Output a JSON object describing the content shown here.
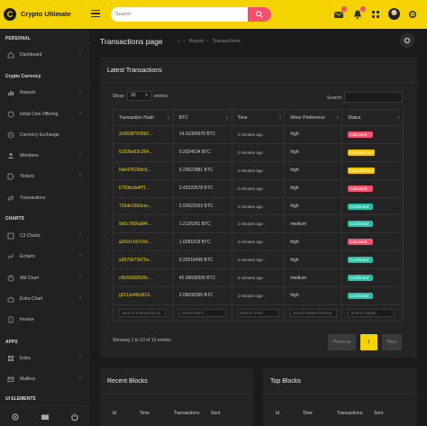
{
  "header": {
    "logo_letter": "C",
    "brand": "Crypto Ultimate",
    "search_placeholder": "Search",
    "notification_count": "",
    "accent": "#f5d300"
  },
  "sidebar": {
    "sections": {
      "personal": "PERSONAL",
      "crypto": "Crypto Currency",
      "charts": "CHARTS",
      "apps": "APPS",
      "ui": "UI ELEMENTS"
    },
    "items": [
      {
        "label": "Dashboard",
        "icon": "home-icon"
      },
      {
        "label": "Reports",
        "icon": "chart-icon"
      },
      {
        "label": "Initial Coin Offering",
        "icon": "coin-icon"
      },
      {
        "label": "Currency Exchange",
        "icon": "exchange-icon"
      },
      {
        "label": "Members",
        "icon": "users-icon"
      },
      {
        "label": "Tickers",
        "icon": "tag-icon"
      },
      {
        "label": "Transactions",
        "icon": "swap-icon"
      },
      {
        "label": "C3 Charts",
        "icon": "bar-chart-icon"
      },
      {
        "label": "Echarts",
        "icon": "line-chart-icon"
      },
      {
        "label": "AM Chart",
        "icon": "pie-chart-icon"
      },
      {
        "label": "Extra Chart",
        "icon": "area-chart-icon"
      },
      {
        "label": "Invoice",
        "icon": "invoice-icon"
      },
      {
        "label": "Extra",
        "icon": "grid-icon"
      },
      {
        "label": "Mailbox",
        "icon": "mail-icon"
      }
    ]
  },
  "page": {
    "title": "Transactions page",
    "breadcrumb": [
      "Report",
      "Transactions"
    ]
  },
  "latest": {
    "title": "Latest Transactions",
    "show_label": "Show",
    "entries_value": "10",
    "entries_label": "entries",
    "search_label": "Search:",
    "columns": [
      "Transaction Hash",
      "BTC",
      "Time",
      "Miner Preference",
      "Status"
    ],
    "rows": [
      {
        "hash": "2c66087936b5...",
        "btc": "14.01099978 BTC",
        "time": "2 minutes ago",
        "pref": "high",
        "status": "Canceled"
      },
      {
        "hash": "51935e53c294...",
        "btc": "0.3024534 BTC",
        "time": "2 minutes ago",
        "pref": "high",
        "status": "Unconfirmed"
      },
      {
        "hash": "5de47415bfc6...",
        "btc": "0.20522881 BTC",
        "time": "2 minutes ago",
        "pref": "high",
        "status": "Unconfirmed"
      },
      {
        "hash": "6793bcfa4f7f...",
        "btc": "2.43220578 BTC",
        "time": "2 minutes ago",
        "pref": "high",
        "status": "Canceled"
      },
      {
        "hash": "733de15b3cec...",
        "btc": "2.02622033 BTC",
        "time": "2 minutes ago",
        "pref": "high",
        "status": "Confirmed"
      },
      {
        "hash": "9d2c7b06a84f...",
        "btc": "1.2126281 BTC",
        "time": "2 minutes ago",
        "pref": "medium",
        "status": "Confirmed"
      },
      {
        "hash": "a261fc1d714d...",
        "btc": "1.0281818 BTC",
        "time": "2 minutes ago",
        "pref": "high",
        "status": "Canceled"
      },
      {
        "hash": "a3976b73d75e...",
        "btc": "0.20518496 BTC",
        "time": "2 minutes ago",
        "pref": "high",
        "status": "Confirmed"
      },
      {
        "hash": "c6b59368635c...",
        "btc": "42.99698306 BTC",
        "time": "2 minutes ago",
        "pref": "medium",
        "status": "Confirmed"
      },
      {
        "hash": "g011cb48c6f19...",
        "btc": "2.08039395 BTC",
        "time": "2 minutes ago",
        "pref": "high",
        "status": "Confirmed"
      }
    ],
    "footer_placeholders": [
      "Search Transaction H",
      "Search BTC",
      "Search Time",
      "Search Miner Prefere",
      "Search Status"
    ],
    "showing": "Showing 1 to 10 of 10 entries",
    "pagination": {
      "previous": "Previous",
      "current": "1",
      "next": "Next"
    },
    "status_colors": {
      "Canceled": "#f4506b",
      "Unconfirmed": "#f5c400",
      "Confirmed": "#26bfa8"
    }
  },
  "recent_blocks": {
    "title": "Recent Blocks",
    "columns": [
      "Id",
      "Time",
      "Transactions",
      "Sent"
    ]
  },
  "top_blocks": {
    "title": "Top Blocks",
    "columns": [
      "Id",
      "Time",
      "Transactions",
      "Sent"
    ]
  }
}
